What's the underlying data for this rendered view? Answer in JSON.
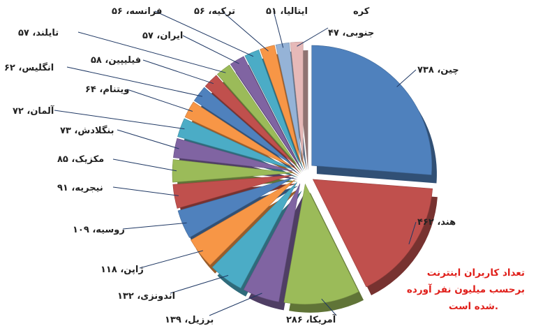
{
  "chart_data": {
    "type": "pie",
    "style": "exploded-3d",
    "unit": "million",
    "slices": [
      {
        "label": "چین",
        "value_text": "۷۳۸",
        "value": 738,
        "color": "#4f81bd"
      },
      {
        "label": "هند",
        "value_text": "۴۶۲",
        "value": 462,
        "color": "#c0504d"
      },
      {
        "label": "آمریکا",
        "value_text": "۲۸۶",
        "value": 286,
        "color": "#9bbb59"
      },
      {
        "label": "برزیل",
        "value_text": "۱۳۹",
        "value": 139,
        "color": "#8064a2"
      },
      {
        "label": "اندونزی",
        "value_text": "۱۳۲",
        "value": 132,
        "color": "#4bacc6"
      },
      {
        "label": "ژاپن",
        "value_text": "۱۱۸",
        "value": 118,
        "color": "#f79646"
      },
      {
        "label": "روسیه",
        "value_text": "۱۰۹",
        "value": 109,
        "color": "#4f81bd"
      },
      {
        "label": "نیجریه",
        "value_text": "۹۱",
        "value": 91,
        "color": "#c0504d"
      },
      {
        "label": "مکزیک",
        "value_text": "۸۵",
        "value": 85,
        "color": "#9bbb59"
      },
      {
        "label": "بنگلادش",
        "value_text": "۷۳",
        "value": 73,
        "color": "#8064a2"
      },
      {
        "label": "آلمان",
        "value_text": "۷۲",
        "value": 72,
        "color": "#4bacc6"
      },
      {
        "label": "ویتنام",
        "value_text": "۶۴",
        "value": 64,
        "color": "#f79646"
      },
      {
        "label": "انگلیس",
        "value_text": "۶۲",
        "value": 62,
        "color": "#4f81bd"
      },
      {
        "label": "فیلیپین",
        "value_text": "۵۸",
        "value": 58,
        "color": "#c0504d"
      },
      {
        "label": "تایلند",
        "value_text": "۵۷",
        "value": 57,
        "color": "#9bbb59"
      },
      {
        "label": "ایران",
        "value_text": "۵۷",
        "value": 57,
        "color": "#8064a2"
      },
      {
        "label": "فرانسه",
        "value_text": "۵۶",
        "value": 56,
        "color": "#4bacc6"
      },
      {
        "label": "ترکیه",
        "value_text": "۵۶",
        "value": 56,
        "color": "#f79646"
      },
      {
        "label": "ایتالیا",
        "value_text": "۵۱",
        "value": 51,
        "color": "#95b3d7"
      },
      {
        "label": "کره جنوبی",
        "value_text": "۴۷",
        "value": 47,
        "color": "#e6b9b8"
      }
    ],
    "label_texts": [
      "چین، ۷۳۸",
      "هند، ۴۶۲",
      "آمریکا، ۲۸۶",
      "برزیل، ۱۳۹",
      "اندونزی، ۱۳۲",
      "ژاپن، ۱۱۸",
      "روسیه، ۱۰۹",
      "نیجریه، ۹۱",
      "مکزیک، ۸۵",
      "بنگلادش، ۷۳",
      "آلمان، ۷۲",
      "ویتنام، ۶۴",
      "انگلیس، ۶۲",
      "فیلیپین، ۵۸",
      "تایلند، ۵۷",
      "ایران، ۵۷",
      "فرانسه، ۵۶",
      "ترکیه، ۵۶",
      "ایتالیا، ۵۱",
      "کره",
      "جنوبی، ۴۷"
    ],
    "annotation": {
      "lines": [
        "تعداد کاربران اینترنت",
        "برحسب میلیون نفر آورده",
        "شده است."
      ],
      "color": "#e0201b"
    }
  }
}
